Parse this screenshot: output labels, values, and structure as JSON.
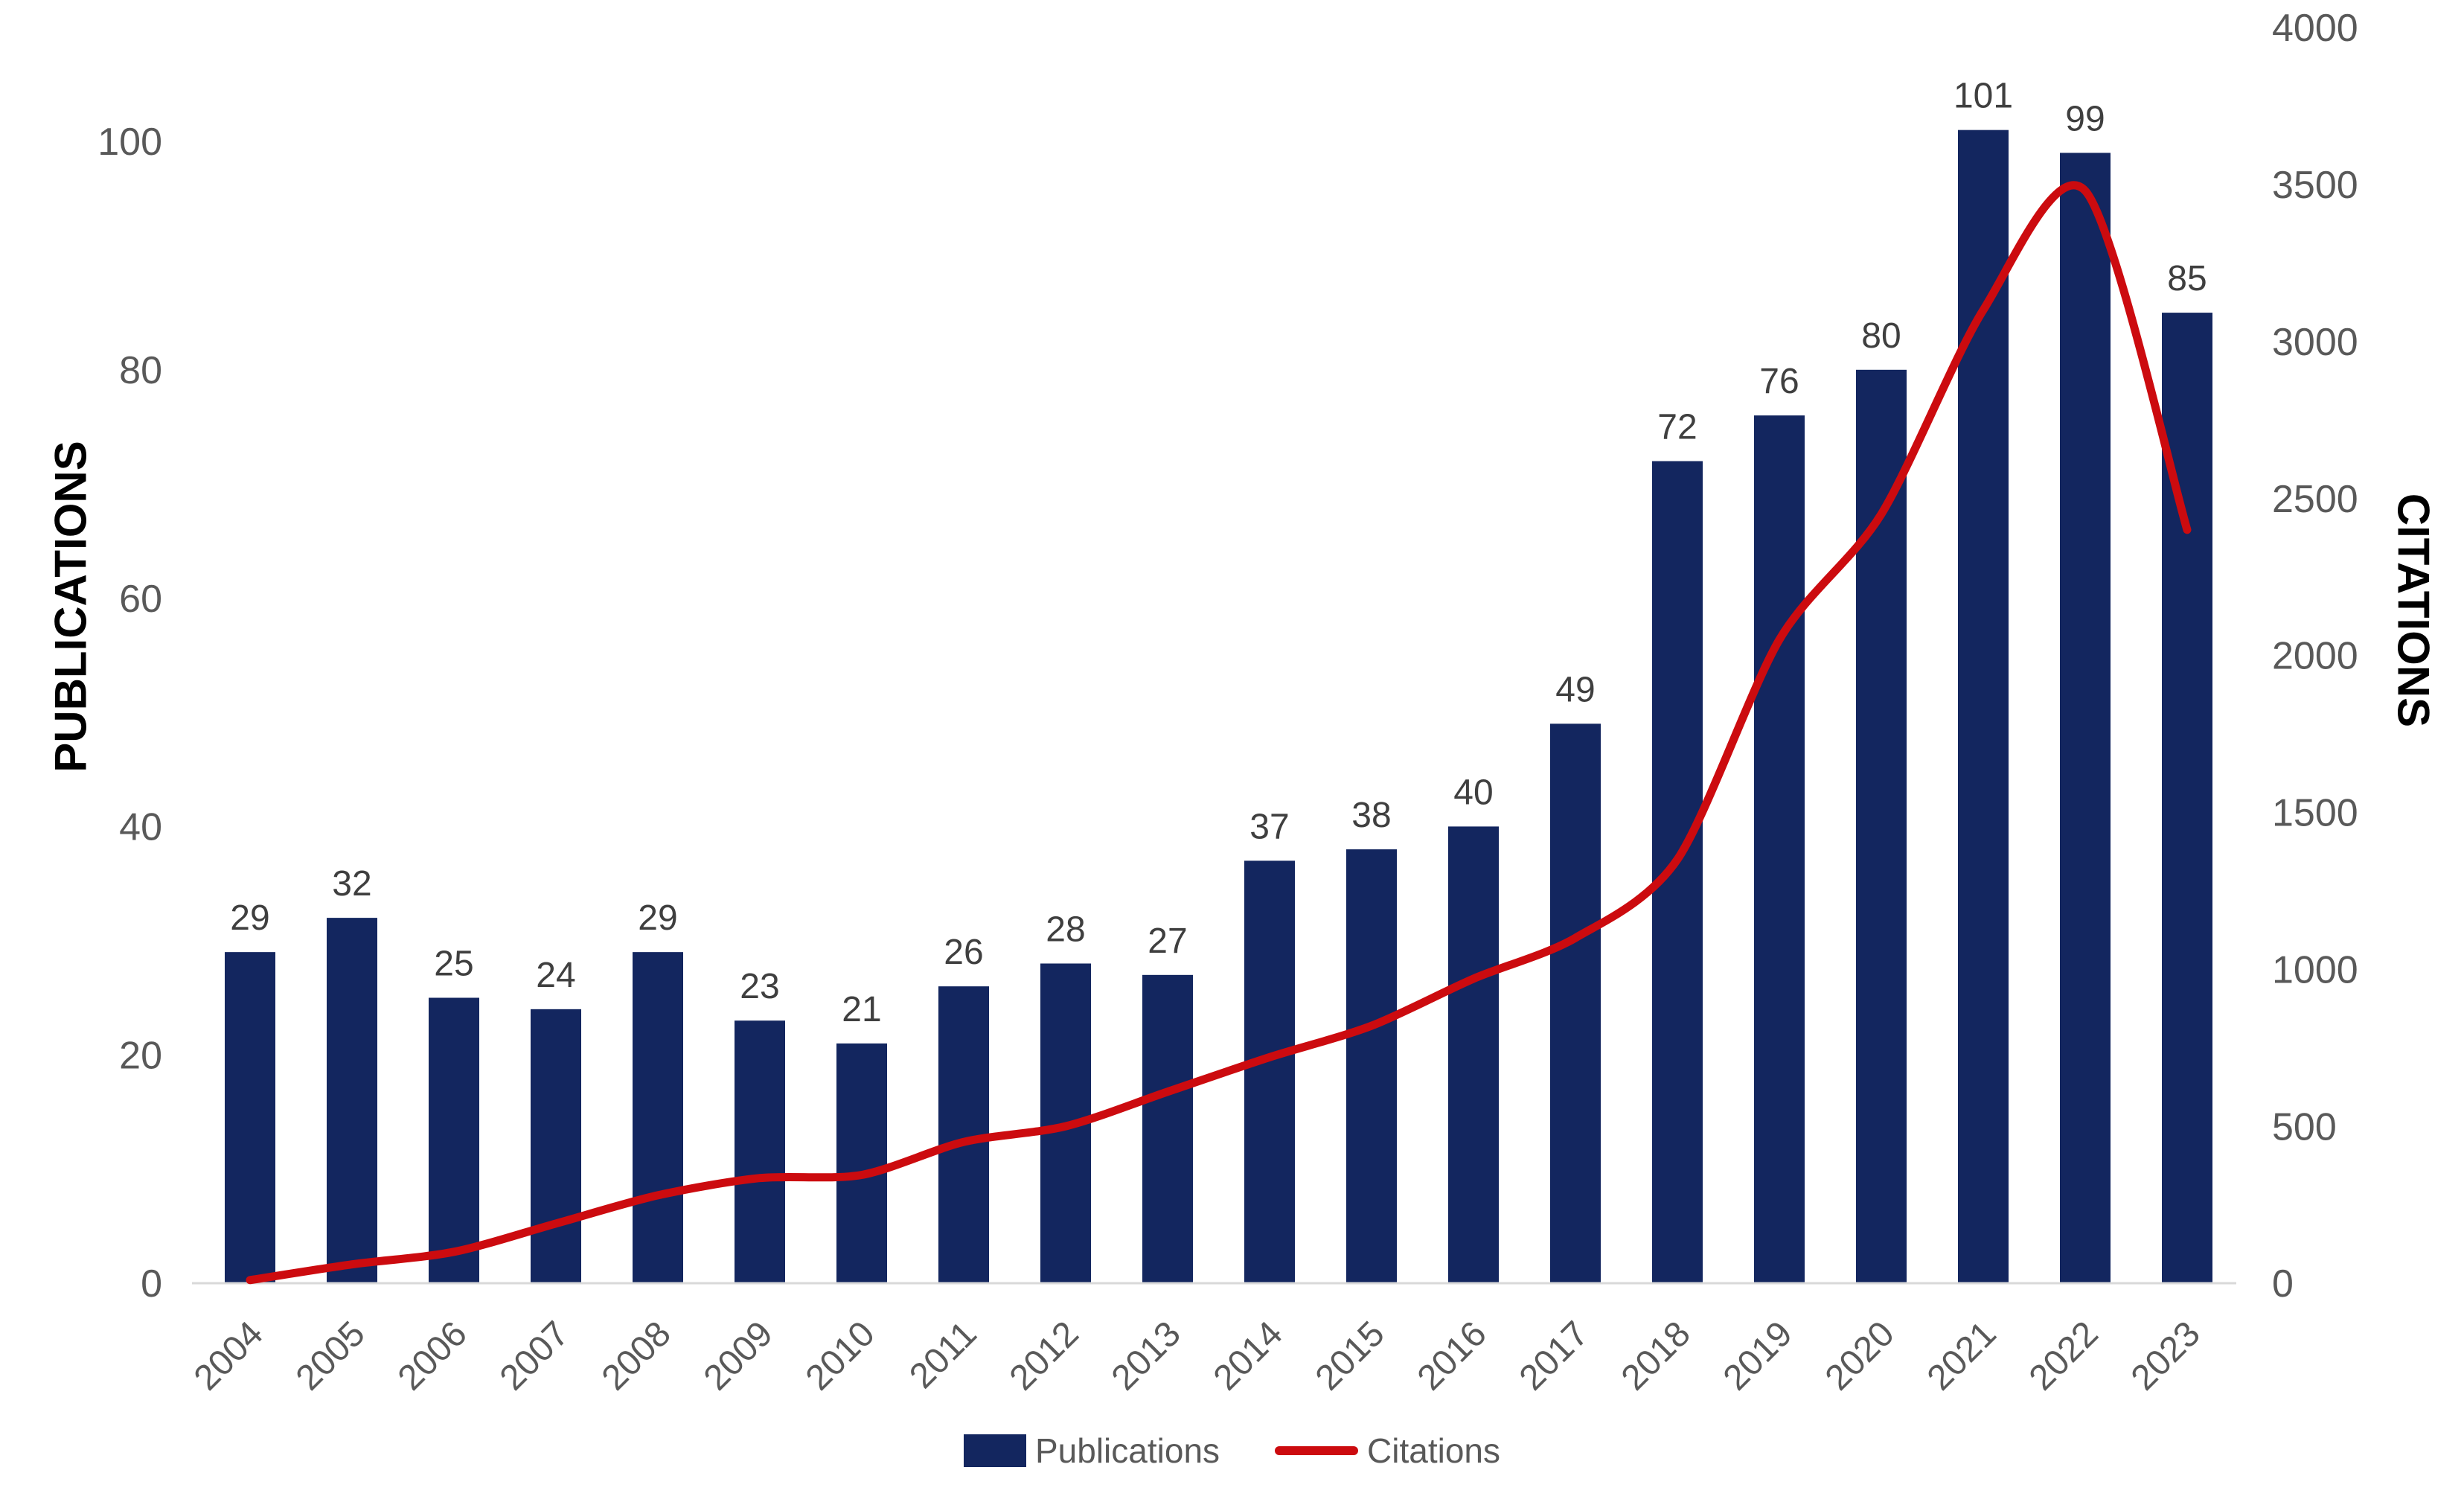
{
  "chart_data": {
    "type": "bar",
    "subtype": "combo-bar-line-dual-axis",
    "title": "",
    "categories": [
      "2004",
      "2005",
      "2006",
      "2007",
      "2008",
      "2009",
      "2010",
      "2011",
      "2012",
      "2013",
      "2014",
      "2015",
      "2016",
      "2017",
      "2018",
      "2019",
      "2020",
      "2021",
      "2022",
      "2023"
    ],
    "series": [
      {
        "name": "Publications",
        "type": "bar",
        "axis": "left",
        "color": "#13265f",
        "values": [
          29,
          32,
          25,
          24,
          29,
          23,
          21,
          26,
          28,
          27,
          37,
          38,
          40,
          49,
          72,
          76,
          80,
          101,
          99,
          85
        ]
      },
      {
        "name": "Citations",
        "type": "line",
        "axis": "right",
        "color": "#cc0b0f",
        "values": [
          10,
          60,
          100,
          190,
          280,
          335,
          345,
          450,
          500,
          610,
          720,
          820,
          970,
          1100,
          1350,
          2050,
          2450,
          3100,
          3480,
          2400
        ]
      }
    ],
    "left_axis": {
      "title": "PUBLICATIONS",
      "ticks": [
        0,
        20,
        40,
        60,
        80,
        100
      ],
      "min": 0,
      "max": 100
    },
    "right_axis": {
      "title": "CITATIONS",
      "ticks": [
        0,
        500,
        1000,
        1500,
        2000,
        2500,
        3000,
        3500,
        4000
      ],
      "min": 0,
      "max": 4000
    },
    "x_axis": {
      "label_rotation_deg": -45
    },
    "legend": {
      "position": "bottom-center",
      "items": [
        "Publications",
        "Citations"
      ]
    },
    "grid": false,
    "bar_value_labels_visible": true,
    "colors": {
      "bar": "#13265f",
      "line": "#cc0b0f",
      "tick_text": "#595959",
      "bar_label_text": "#3f3f3f",
      "axis_title_text": "#000000",
      "axis_line": "#d9d9d9",
      "background": "#ffffff"
    }
  }
}
